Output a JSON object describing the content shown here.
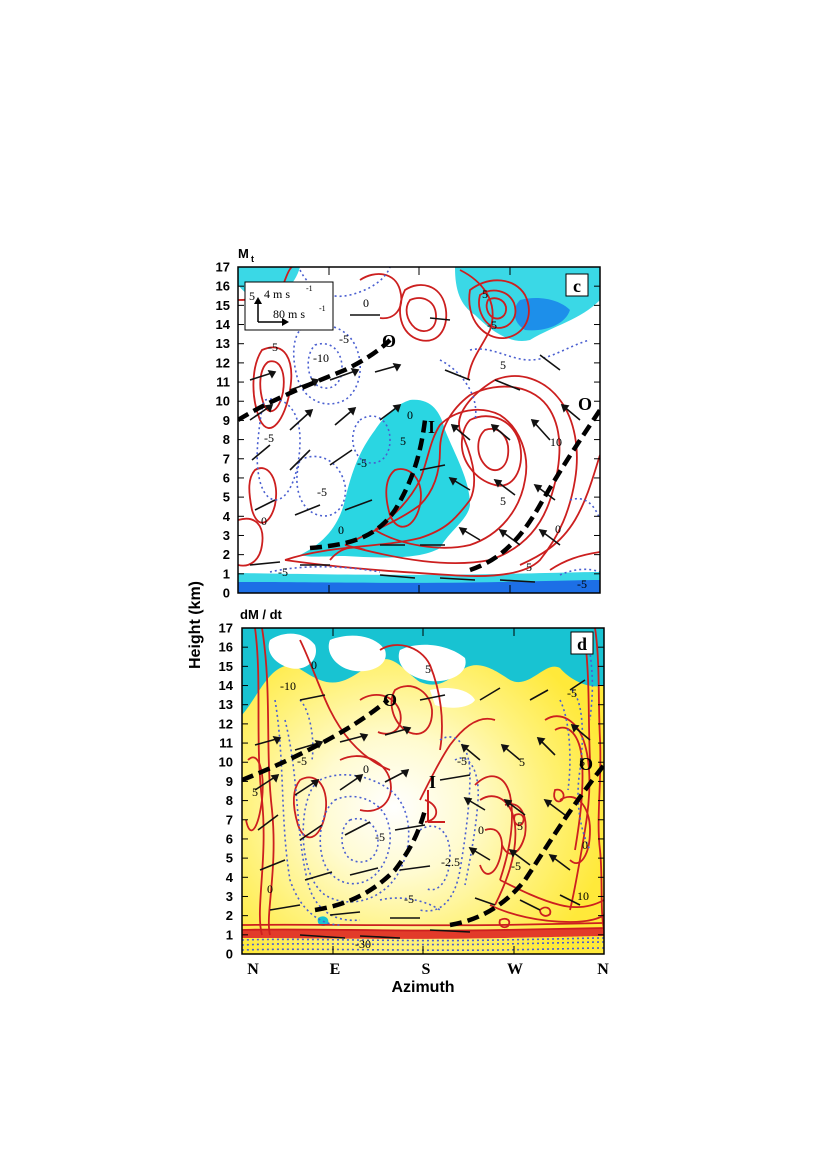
{
  "chart_data": [
    {
      "type": "contour",
      "panel_label": "c",
      "title": "M",
      "title_subscript": "t",
      "ylabel": "Height (km)",
      "ylim": [
        0,
        17
      ],
      "y_ticks": [
        "0",
        "1",
        "2",
        "3",
        "4",
        "5",
        "6",
        "7",
        "8",
        "9",
        "10",
        "11",
        "12",
        "13",
        "14",
        "15",
        "16",
        "17"
      ],
      "vector_legend": {
        "vertical": "4 m s",
        "vertical_exp": "-1",
        "horizontal": "80 m s",
        "horizontal_exp": "-1",
        "side_label": "5"
      },
      "contour_labels": [
        "5",
        "0",
        "-5",
        "-10",
        "-5",
        "-5",
        "0",
        "-5",
        "0",
        "5",
        "-5",
        "5",
        "10",
        "5",
        "0",
        "5",
        "-5",
        "-5",
        "-5",
        "0",
        "5"
      ],
      "line_labels": [
        "O",
        "I",
        "O"
      ]
    },
    {
      "type": "contour",
      "panel_label": "d",
      "title": "dM / dt",
      "xlabel": "Azimuth",
      "ylabel": "Height (km)",
      "ylim": [
        0,
        17
      ],
      "x_ticks": [
        "N",
        "E",
        "S",
        "W",
        "N"
      ],
      "y_ticks": [
        "0",
        "1",
        "2",
        "3",
        "4",
        "5",
        "6",
        "7",
        "8",
        "9",
        "10",
        "11",
        "12",
        "13",
        "14",
        "15",
        "16",
        "17"
      ],
      "contour_labels": [
        "0",
        "-10",
        "5",
        "-5",
        "-5",
        "0",
        "-5",
        "5",
        "-5",
        "-2.5",
        "0",
        "5",
        "5",
        "-5",
        "0",
        "5",
        "0",
        "10",
        "-5",
        "-30"
      ],
      "line_labels": [
        "O",
        "I",
        "O"
      ]
    }
  ],
  "colors": {
    "positive_contour": "#cc1f1f",
    "negative_contour": "#4a5fd0",
    "cyan_fill": "#1fd3e0",
    "dark_cyan_fill": "#12b4c6",
    "blue_fill": "#1d6fe6",
    "yellow_fill": "#fff14a",
    "path_line": "#000000"
  }
}
